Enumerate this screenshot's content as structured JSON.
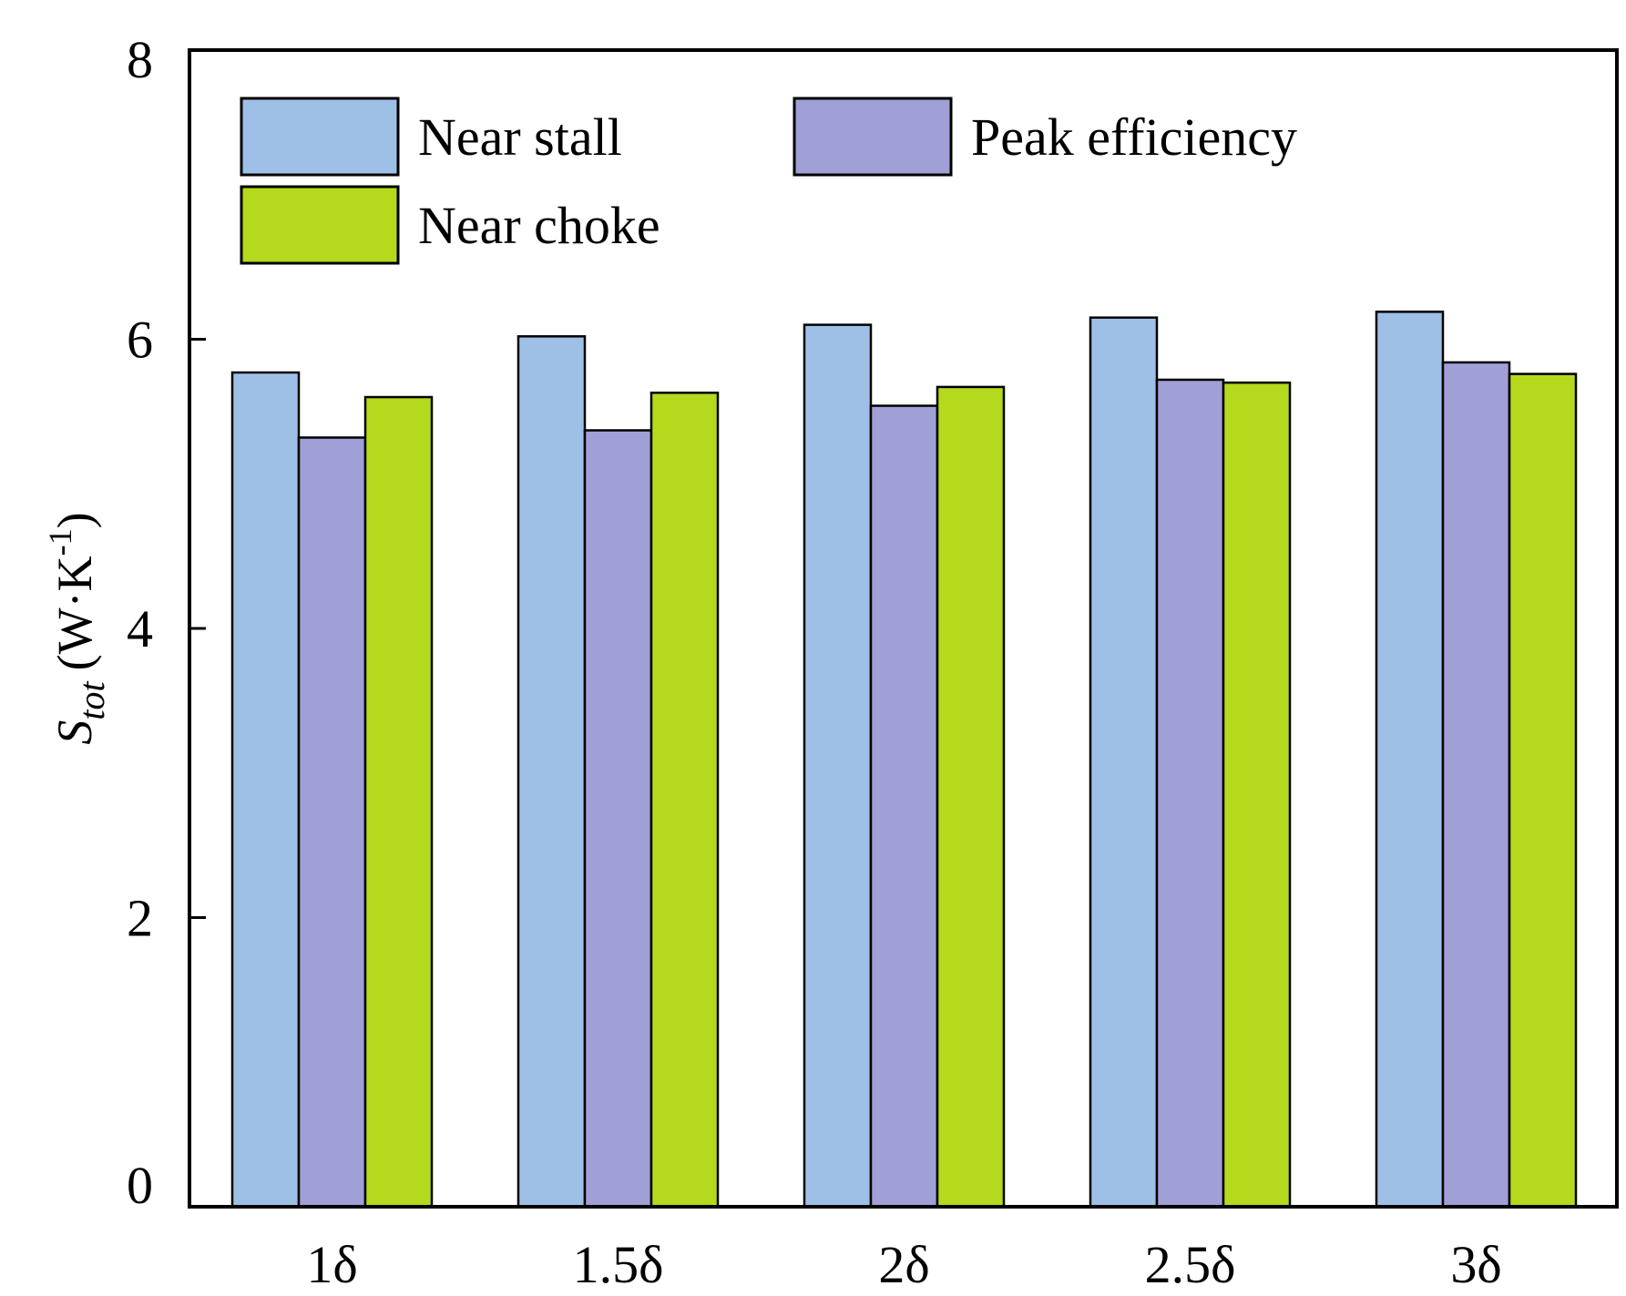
{
  "chart_data": {
    "type": "bar",
    "categories": [
      "1δ",
      "1.5δ",
      "2δ",
      "2.5δ",
      "3δ"
    ],
    "series": [
      {
        "name": "Near stall",
        "color": "#9fc0e6",
        "values": [
          5.77,
          6.02,
          6.1,
          6.15,
          6.19
        ]
      },
      {
        "name": "Peak efficiency",
        "color": "#a09fd6",
        "values": [
          5.32,
          5.37,
          5.54,
          5.72,
          5.84
        ]
      },
      {
        "name": "Near choke",
        "color": "#b5d91c",
        "values": [
          5.6,
          5.63,
          5.67,
          5.7,
          5.76
        ]
      }
    ],
    "ylim": [
      0,
      8
    ],
    "yticks": [
      "0",
      "2",
      "4",
      "6",
      "8"
    ],
    "ylabel": {
      "symbol": "S",
      "subscript": "tot",
      "units": "(W·K",
      "exponent": "-1",
      "close": ")"
    },
    "xlabel": "",
    "title": "",
    "legend": {
      "placement": "top-left",
      "columns": 2
    },
    "grid": false
  }
}
